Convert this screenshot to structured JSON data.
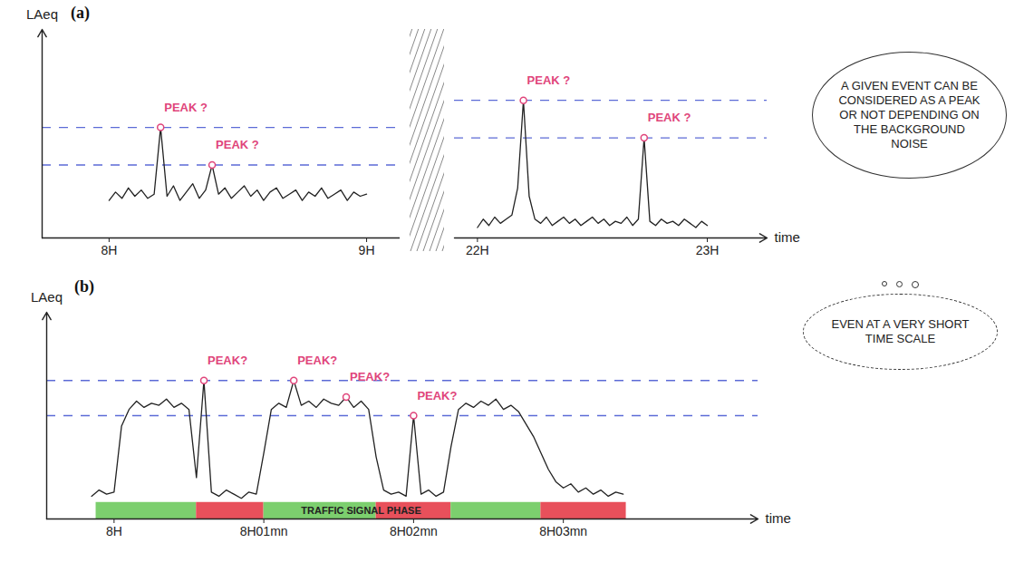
{
  "chart_data": [
    {
      "type": "line",
      "title": "(a)",
      "y_label": "LAeq",
      "color": "#222222",
      "x": [
        8,
        8.025,
        8.05,
        8.075,
        8.1,
        8.125,
        8.15,
        8.175,
        8.2,
        8.225,
        8.25,
        8.275,
        8.3,
        8.325,
        8.35,
        8.375,
        8.4,
        8.425,
        8.45,
        8.475,
        8.5,
        8.525,
        8.55,
        8.575,
        8.6,
        8.625,
        8.65,
        8.675,
        8.7,
        8.725,
        8.75,
        8.775,
        8.8,
        8.825,
        8.85,
        8.875,
        8.9,
        8.925,
        8.95,
        8.975,
        9
      ],
      "values": [
        1.8,
        2.2,
        1.9,
        2.4,
        2.0,
        2.3,
        1.9,
        2.1,
        5.3,
        2.0,
        2.5,
        1.8,
        2.2,
        2.6,
        1.9,
        2.3,
        3.5,
        2.1,
        2.4,
        1.9,
        2.2,
        2.5,
        2.0,
        2.3,
        1.8,
        2.2,
        2.4,
        1.9,
        2.1,
        2.3,
        1.8,
        2.2,
        2.0,
        2.4,
        1.9,
        2.1,
        2.3,
        1.8,
        2.2,
        2.0,
        2.1
      ],
      "xlim": [
        7.74,
        9.13
      ],
      "xticks": [
        {
          "value": 8,
          "label": "8H"
        },
        {
          "value": 9,
          "label": "9H"
        }
      ],
      "ylim": [
        0,
        10
      ],
      "tick_labels": "x",
      "thresholds": [
        3.5,
        5.3
      ],
      "annotations": [
        {
          "text": "PEAK ?",
          "x": 8.2
        },
        {
          "text": "PEAK ?",
          "x": 8.4
        }
      ]
    },
    {
      "type": "line",
      "x_label": "time",
      "color": "#222222",
      "x": [
        22,
        22.025,
        22.05,
        22.075,
        22.1,
        22.125,
        22.15,
        22.175,
        22.2,
        22.225,
        22.25,
        22.275,
        22.3,
        22.325,
        22.35,
        22.375,
        22.4,
        22.425,
        22.45,
        22.475,
        22.5,
        22.525,
        22.55,
        22.575,
        22.6,
        22.625,
        22.65,
        22.675,
        22.7,
        22.725,
        22.75,
        22.775,
        22.8,
        22.825,
        22.85,
        22.875,
        22.9,
        22.925,
        22.95,
        22.975,
        23
      ],
      "values": [
        0.5,
        0.9,
        0.6,
        1.0,
        0.7,
        0.9,
        1.1,
        2.4,
        6.6,
        2.0,
        0.9,
        0.7,
        1.0,
        0.6,
        0.8,
        1.0,
        0.7,
        0.9,
        0.6,
        0.8,
        1.0,
        0.7,
        0.9,
        0.6,
        0.8,
        0.7,
        1.0,
        0.6,
        0.9,
        4.8,
        0.8,
        0.6,
        0.9,
        0.7,
        0.8,
        0.6,
        0.9,
        0.7,
        0.5,
        0.8,
        0.6
      ],
      "xlim": [
        21.9,
        23.26
      ],
      "xticks": [
        {
          "value": 22,
          "label": "22H"
        },
        {
          "value": 23,
          "label": "23H"
        }
      ],
      "ylim": [
        0,
        10
      ],
      "tick_labels": "x",
      "thresholds": [
        4.8,
        6.6
      ],
      "annotations": [
        {
          "text": "PEAK ?",
          "x": 22.2
        },
        {
          "text": "PEAK ?",
          "x": 22.725
        }
      ],
      "callout": "A GIVEN EVENT CAN BE CONSIDERED AS A PEAK OR NOT DEPENDING ON THE BACKGROUND NOISE"
    },
    {
      "type": "line",
      "title": "(b)",
      "y_label": "LAeq",
      "x_label": "time",
      "color": "#222222",
      "x": [
        -0.15,
        -0.1,
        -0.05,
        0,
        0.05,
        0.1,
        0.15,
        0.2,
        0.25,
        0.3,
        0.35,
        0.4,
        0.45,
        0.5,
        0.55,
        0.6,
        0.65,
        0.7,
        0.75,
        0.8,
        0.85,
        0.9,
        0.95,
        1,
        1.05,
        1.1,
        1.15,
        1.2,
        1.25,
        1.3,
        1.35,
        1.4,
        1.45,
        1.5,
        1.55,
        1.6,
        1.65,
        1.7,
        1.75,
        1.8,
        1.85,
        1.9,
        1.95,
        2,
        2.05,
        2.1,
        2.15,
        2.2,
        2.25,
        2.3,
        2.35,
        2.4,
        2.45,
        2.5,
        2.55,
        2.6,
        2.65,
        2.7,
        2.75,
        2.8,
        2.85,
        2.9,
        2.95,
        3,
        3.05,
        3.1,
        3.15,
        3.2,
        3.25,
        3.3,
        3.35,
        3.4
      ],
      "values": [
        1.1,
        1.4,
        1.2,
        1.3,
        4.5,
        5.3,
        5.7,
        5.4,
        5.6,
        5.5,
        5.8,
        5.4,
        5.6,
        5.3,
        2.0,
        6.7,
        1.3,
        1.1,
        1.4,
        1.2,
        1.0,
        1.3,
        1.2,
        3.2,
        5.3,
        5.6,
        5.4,
        6.7,
        5.5,
        5.7,
        5.4,
        5.8,
        5.6,
        5.5,
        5.9,
        5.4,
        5.7,
        5.3,
        3.0,
        1.4,
        1.2,
        1.3,
        1.1,
        5.0,
        1.2,
        1.4,
        1.1,
        1.3,
        3.5,
        5.3,
        5.6,
        5.4,
        5.7,
        5.5,
        5.8,
        5.3,
        5.5,
        5.2,
        4.6,
        4.0,
        3.2,
        2.4,
        1.8,
        1.5,
        1.7,
        1.3,
        1.5,
        1.2,
        1.4,
        1.1,
        1.3,
        1.2
      ],
      "xlim": [
        -0.45,
        4.3
      ],
      "xticks": [
        {
          "value": 0,
          "label": "8H"
        },
        {
          "value": 1,
          "label": "8H01mn"
        },
        {
          "value": 2,
          "label": "8H02mn"
        },
        {
          "value": 3,
          "label": "8H03mn"
        }
      ],
      "ylim": [
        0,
        10
      ],
      "tick_labels": "x",
      "thresholds": [
        5.0,
        6.7
      ],
      "annotations": [
        {
          "text": "PEAK?",
          "x": 0.6
        },
        {
          "text": "PEAK?",
          "x": 1.2
        },
        {
          "text": "PEAK?",
          "x": 1.55
        },
        {
          "text": "PEAK?",
          "x": 2
        }
      ],
      "phases": {
        "label": "TRAFFIC SIGNAL PHASE",
        "segments": [
          {
            "start": -0.12,
            "end": 0.55,
            "color": "#7ccf6e"
          },
          {
            "start": 0.55,
            "end": 1.0,
            "color": "#e8505b"
          },
          {
            "start": 1.0,
            "end": 1.75,
            "color": "#7ccf6e"
          },
          {
            "start": 1.75,
            "end": 2.25,
            "color": "#e8505b"
          },
          {
            "start": 2.25,
            "end": 2.85,
            "color": "#7ccf6e"
          },
          {
            "start": 2.85,
            "end": 3.42,
            "color": "#e8505b"
          }
        ]
      },
      "callout": "EVEN AT A VERY SHORT TIME SCALE"
    }
  ]
}
